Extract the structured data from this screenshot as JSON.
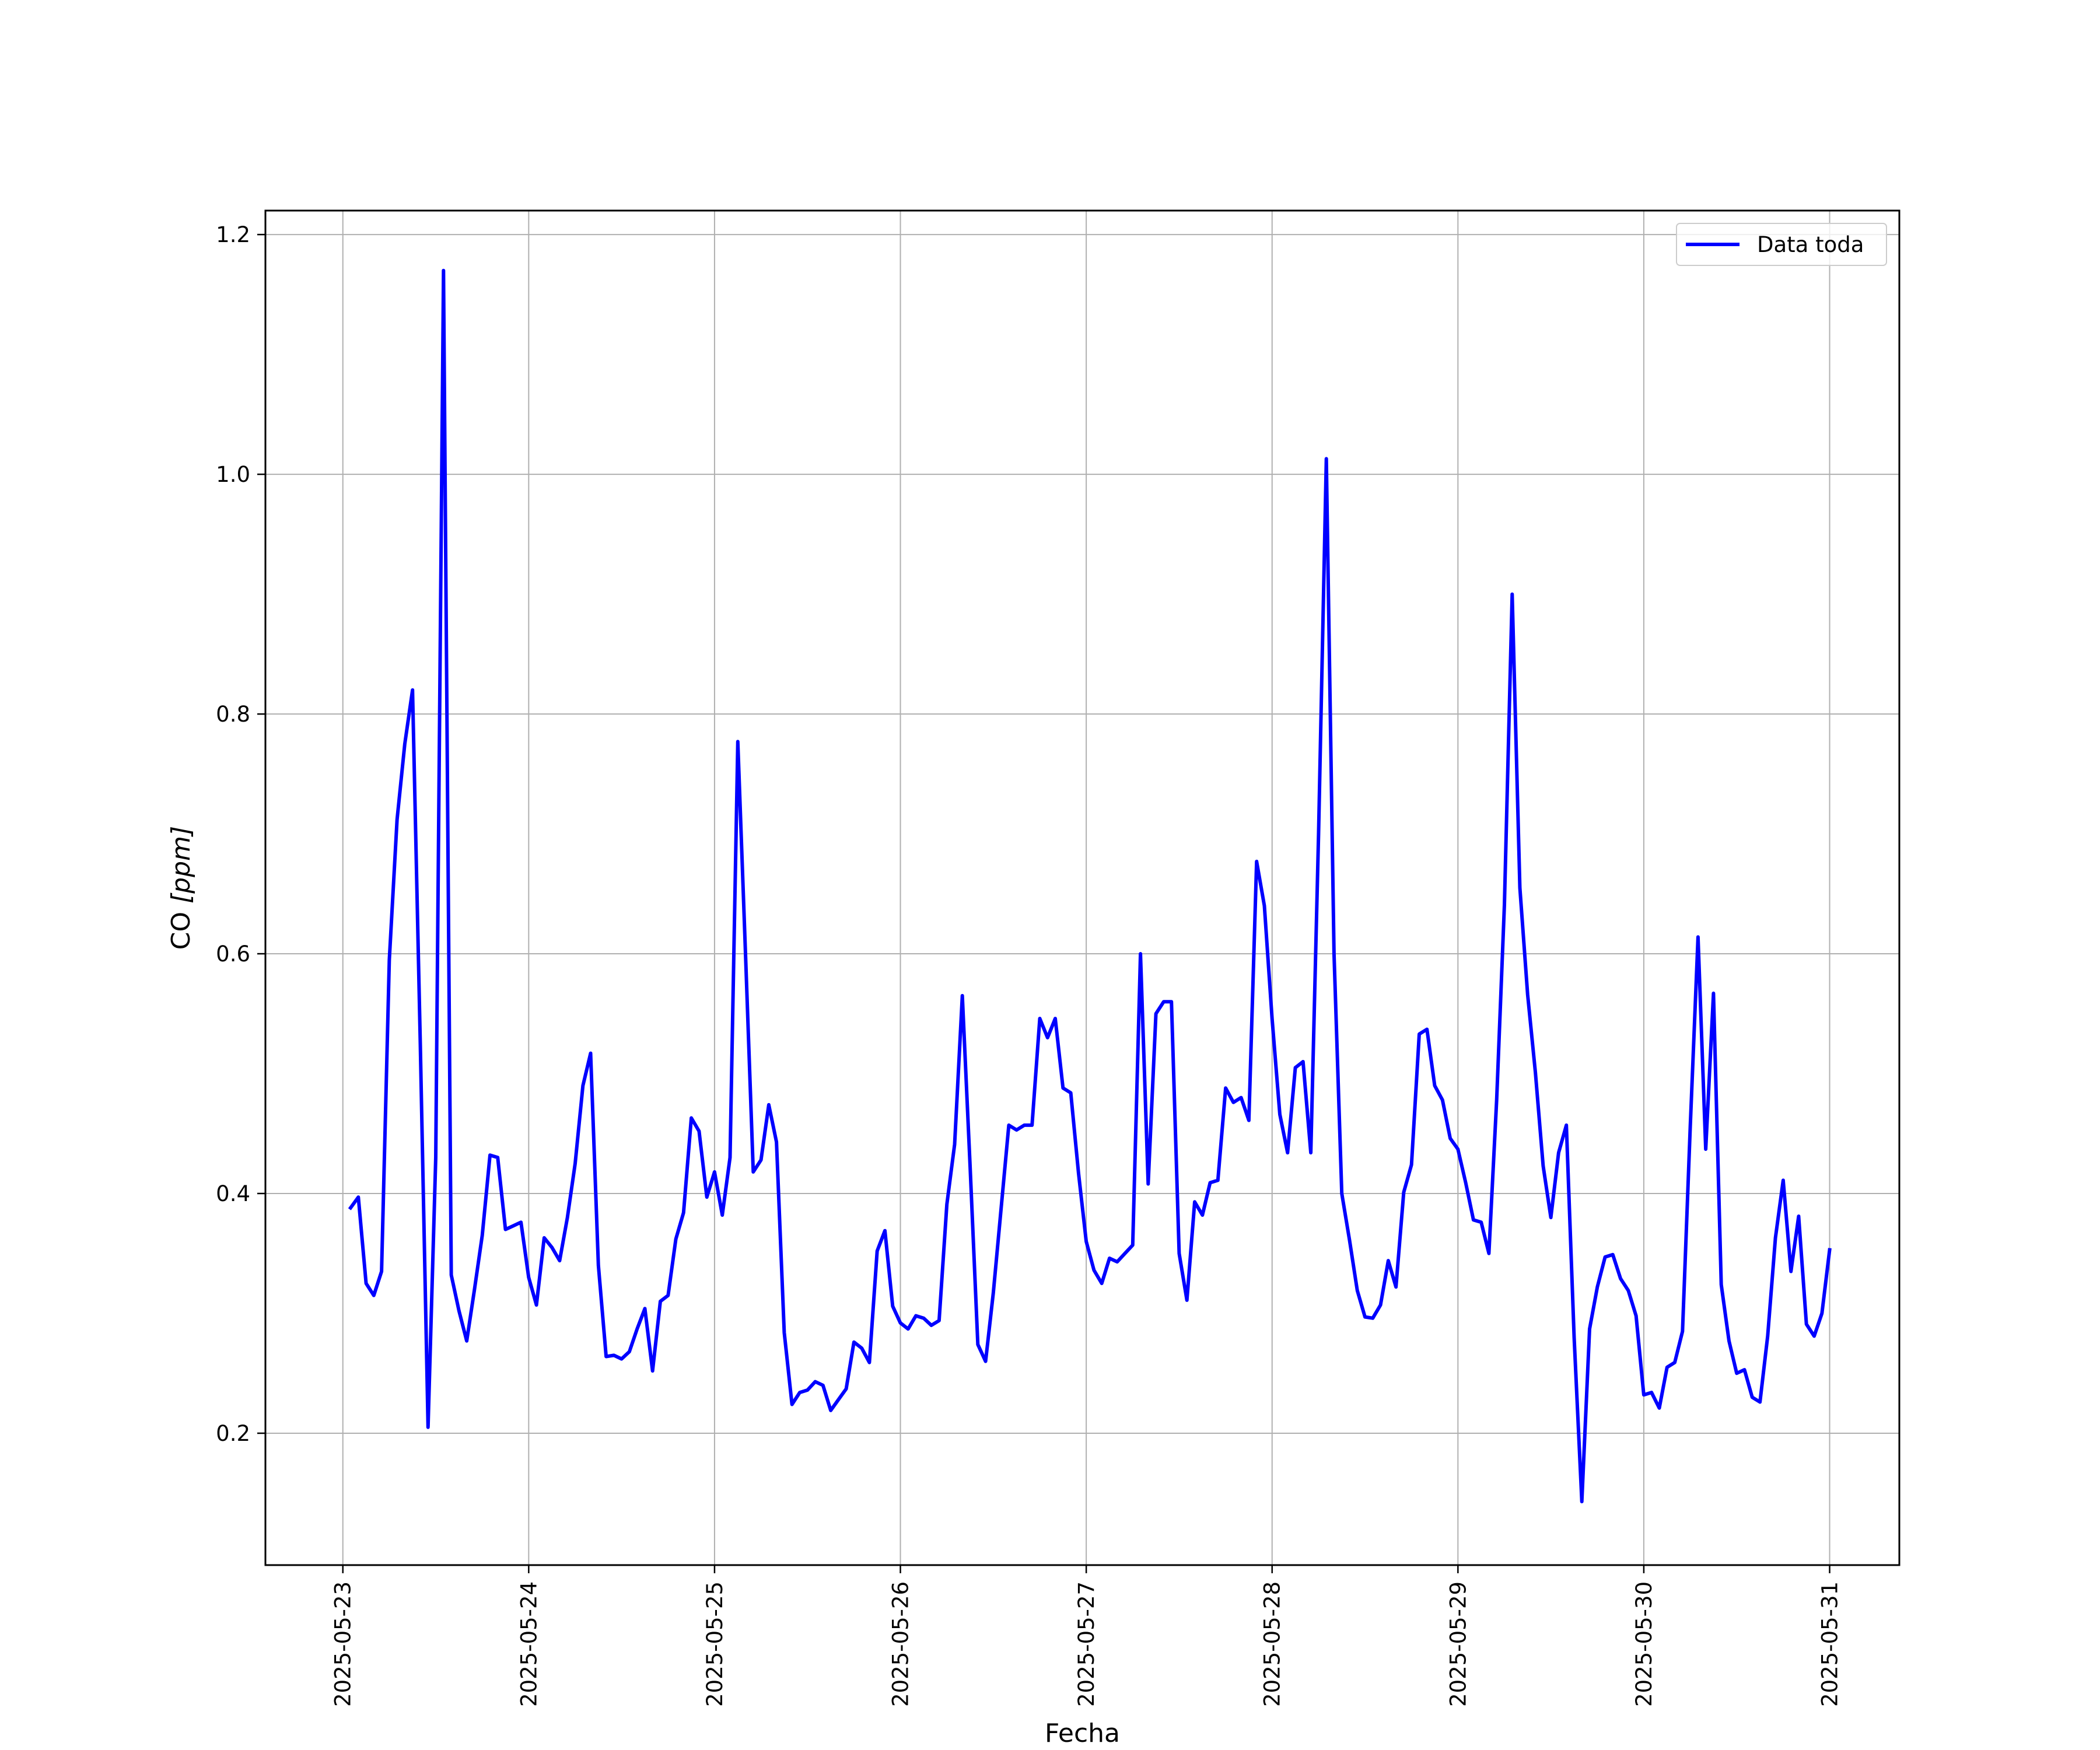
{
  "chart_data": {
    "type": "line",
    "title": "",
    "xlabel": "Fecha",
    "ylabel": "CO [ppm]",
    "ylabel_parts": {
      "text": "CO ",
      "unit": "[ppm]"
    },
    "x_tick_labels": [
      "2025-05-23",
      "2025-05-24",
      "2025-05-25",
      "2025-05-26",
      "2025-05-27",
      "2025-05-28",
      "2025-05-29",
      "2025-05-30",
      "2025-05-31"
    ],
    "y_tick_labels": [
      "0.2",
      "0.4",
      "0.6",
      "0.8",
      "1.0",
      "1.2"
    ],
    "xlim": [
      "2025-05-22 14:00",
      "2025-05-31 09:00"
    ],
    "ylim": [
      0.09,
      1.22
    ],
    "grid": true,
    "legend": {
      "position": "top-right"
    },
    "series": [
      {
        "name": "Data toda",
        "color": "#0000ff",
        "x": [
          "2025-05-23 01:00",
          "2025-05-23 02:00",
          "2025-05-23 03:00",
          "2025-05-23 04:00",
          "2025-05-23 05:00",
          "2025-05-23 06:00",
          "2025-05-23 07:00",
          "2025-05-23 08:00",
          "2025-05-23 09:00",
          "2025-05-23 10:00",
          "2025-05-23 11:00",
          "2025-05-23 12:00",
          "2025-05-23 13:00",
          "2025-05-23 14:00",
          "2025-05-23 15:00",
          "2025-05-23 16:00",
          "2025-05-23 17:00",
          "2025-05-23 18:00",
          "2025-05-23 19:00",
          "2025-05-23 20:00",
          "2025-05-23 21:00",
          "2025-05-23 22:00",
          "2025-05-23 23:00",
          "2025-05-24 00:00",
          "2025-05-24 01:00",
          "2025-05-24 02:00",
          "2025-05-24 03:00",
          "2025-05-24 04:00",
          "2025-05-24 05:00",
          "2025-05-24 06:00",
          "2025-05-24 07:00",
          "2025-05-24 08:00",
          "2025-05-24 09:00",
          "2025-05-24 10:00",
          "2025-05-24 11:00",
          "2025-05-24 12:00",
          "2025-05-24 13:00",
          "2025-05-24 14:00",
          "2025-05-24 15:00",
          "2025-05-24 16:00",
          "2025-05-24 17:00",
          "2025-05-24 18:00",
          "2025-05-24 19:00",
          "2025-05-24 20:00",
          "2025-05-24 21:00",
          "2025-05-24 22:00",
          "2025-05-24 23:00",
          "2025-05-25 00:00",
          "2025-05-25 01:00",
          "2025-05-25 02:00",
          "2025-05-25 03:00",
          "2025-05-25 04:00",
          "2025-05-25 05:00",
          "2025-05-25 06:00",
          "2025-05-25 07:00",
          "2025-05-25 08:00",
          "2025-05-25 09:00",
          "2025-05-25 10:00",
          "2025-05-25 11:00",
          "2025-05-25 12:00",
          "2025-05-25 13:00",
          "2025-05-25 14:00",
          "2025-05-25 15:00",
          "2025-05-25 16:00",
          "2025-05-25 17:00",
          "2025-05-25 18:00",
          "2025-05-25 19:00",
          "2025-05-25 20:00",
          "2025-05-25 21:00",
          "2025-05-25 22:00",
          "2025-05-25 23:00",
          "2025-05-26 00:00",
          "2025-05-26 01:00",
          "2025-05-26 02:00",
          "2025-05-26 03:00",
          "2025-05-26 04:00",
          "2025-05-26 05:00",
          "2025-05-26 06:00",
          "2025-05-26 07:00",
          "2025-05-26 08:00",
          "2025-05-26 09:00",
          "2025-05-26 10:00",
          "2025-05-26 11:00",
          "2025-05-26 12:00",
          "2025-05-26 13:00",
          "2025-05-26 14:00",
          "2025-05-26 15:00",
          "2025-05-26 16:00",
          "2025-05-26 17:00",
          "2025-05-26 18:00",
          "2025-05-26 19:00",
          "2025-05-26 20:00",
          "2025-05-26 21:00",
          "2025-05-26 22:00",
          "2025-05-26 23:00",
          "2025-05-27 00:00",
          "2025-05-27 01:00",
          "2025-05-27 02:00",
          "2025-05-27 03:00",
          "2025-05-27 04:00",
          "2025-05-27 05:00",
          "2025-05-27 06:00",
          "2025-05-27 07:00",
          "2025-05-27 08:00",
          "2025-05-27 09:00",
          "2025-05-27 10:00",
          "2025-05-27 11:00",
          "2025-05-27 12:00",
          "2025-05-27 13:00",
          "2025-05-27 14:00",
          "2025-05-27 15:00",
          "2025-05-27 16:00",
          "2025-05-27 17:00",
          "2025-05-27 18:00",
          "2025-05-27 19:00",
          "2025-05-27 20:00",
          "2025-05-27 21:00",
          "2025-05-27 22:00",
          "2025-05-27 23:00",
          "2025-05-28 00:00",
          "2025-05-28 01:00",
          "2025-05-28 02:00",
          "2025-05-28 03:00",
          "2025-05-28 04:00",
          "2025-05-28 05:00",
          "2025-05-28 06:00",
          "2025-05-28 07:00",
          "2025-05-28 08:00",
          "2025-05-28 09:00",
          "2025-05-28 10:00",
          "2025-05-28 11:00",
          "2025-05-28 12:00",
          "2025-05-28 13:00",
          "2025-05-28 14:00",
          "2025-05-28 15:00",
          "2025-05-28 16:00",
          "2025-05-28 17:00",
          "2025-05-28 18:00",
          "2025-05-28 19:00",
          "2025-05-28 20:00",
          "2025-05-28 21:00",
          "2025-05-28 22:00",
          "2025-05-28 23:00",
          "2025-05-29 00:00",
          "2025-05-29 01:00",
          "2025-05-29 02:00",
          "2025-05-29 03:00",
          "2025-05-29 04:00",
          "2025-05-29 05:00",
          "2025-05-29 06:00",
          "2025-05-29 07:00",
          "2025-05-29 08:00",
          "2025-05-29 09:00",
          "2025-05-29 10:00",
          "2025-05-29 11:00",
          "2025-05-29 12:00",
          "2025-05-29 13:00",
          "2025-05-29 14:00",
          "2025-05-29 15:00",
          "2025-05-29 16:00",
          "2025-05-29 17:00",
          "2025-05-29 18:00",
          "2025-05-29 19:00",
          "2025-05-29 20:00",
          "2025-05-29 21:00",
          "2025-05-29 22:00",
          "2025-05-29 23:00",
          "2025-05-30 00:00",
          "2025-05-30 01:00",
          "2025-05-30 02:00",
          "2025-05-30 03:00",
          "2025-05-30 04:00",
          "2025-05-30 05:00",
          "2025-05-30 06:00",
          "2025-05-30 07:00",
          "2025-05-30 08:00",
          "2025-05-30 09:00",
          "2025-05-30 10:00",
          "2025-05-30 11:00",
          "2025-05-30 12:00",
          "2025-05-30 13:00",
          "2025-05-30 14:00",
          "2025-05-30 15:00",
          "2025-05-30 16:00",
          "2025-05-30 17:00",
          "2025-05-30 18:00",
          "2025-05-30 19:00",
          "2025-05-30 20:00",
          "2025-05-30 21:00",
          "2025-05-30 22:00",
          "2025-05-30 23:00",
          "2025-05-31 00:00"
        ],
        "y": [
          0.388,
          0.397,
          0.325,
          0.315,
          0.335,
          0.595,
          0.712,
          0.775,
          0.82,
          0.525,
          0.205,
          0.43,
          1.17,
          0.332,
          0.302,
          0.277,
          0.32,
          0.365,
          0.432,
          0.43,
          0.37,
          0.373,
          0.376,
          0.33,
          0.307,
          0.363,
          0.355,
          0.344,
          0.38,
          0.425,
          0.49,
          0.517,
          0.34,
          0.264,
          0.265,
          0.262,
          0.268,
          0.287,
          0.304,
          0.252,
          0.31,
          0.315,
          0.362,
          0.384,
          0.463,
          0.452,
          0.397,
          0.418,
          0.382,
          0.43,
          0.777,
          0.6,
          0.418,
          0.428,
          0.474,
          0.443,
          0.284,
          0.224,
          0.234,
          0.236,
          0.243,
          0.24,
          0.219,
          0.228,
          0.237,
          0.276,
          0.271,
          0.259,
          0.352,
          0.369,
          0.306,
          0.292,
          0.287,
          0.298,
          0.296,
          0.29,
          0.294,
          0.391,
          0.441,
          0.565,
          0.423,
          0.274,
          0.26,
          0.317,
          0.387,
          0.457,
          0.453,
          0.457,
          0.457,
          0.546,
          0.53,
          0.546,
          0.488,
          0.484,
          0.417,
          0.36,
          0.336,
          0.325,
          0.346,
          0.343,
          0.35,
          0.357,
          0.6,
          0.408,
          0.55,
          0.56,
          0.56,
          0.35,
          0.311,
          0.393,
          0.382,
          0.409,
          0.411,
          0.488,
          0.476,
          0.48,
          0.461,
          0.677,
          0.64,
          0.546,
          0.466,
          0.434,
          0.505,
          0.51,
          0.434,
          0.7,
          1.013,
          0.6,
          0.4,
          0.361,
          0.319,
          0.297,
          0.296,
          0.307,
          0.344,
          0.322,
          0.401,
          0.424,
          0.533,
          0.537,
          0.49,
          0.478,
          0.446,
          0.437,
          0.409,
          0.378,
          0.376,
          0.35,
          0.478,
          0.641,
          0.9,
          0.655,
          0.566,
          0.501,
          0.423,
          0.38,
          0.434,
          0.457,
          0.28,
          0.143,
          0.287,
          0.322,
          0.347,
          0.349,
          0.329,
          0.319,
          0.298,
          0.232,
          0.234,
          0.221,
          0.255,
          0.259,
          0.285,
          0.456,
          0.614,
          0.437,
          0.567,
          0.324,
          0.277,
          0.25,
          0.253,
          0.23,
          0.226,
          0.281,
          0.363,
          0.411,
          0.335,
          0.381,
          0.291,
          0.281,
          0.3,
          0.353
        ]
      }
    ]
  }
}
